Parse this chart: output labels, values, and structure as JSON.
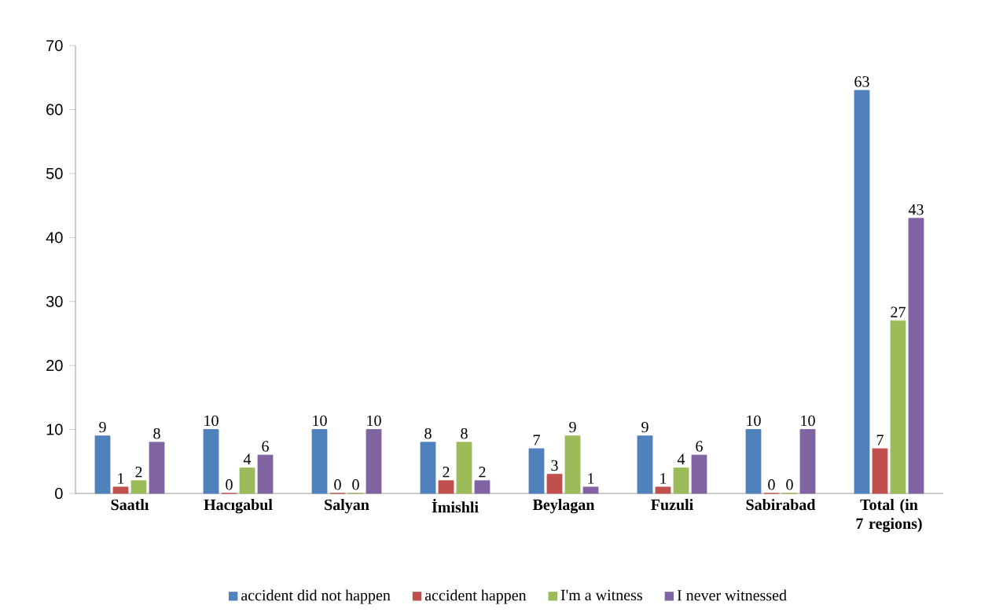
{
  "chart_data": {
    "type": "bar",
    "categories": [
      "Saatlı",
      "Hacıgabul",
      "Salyan",
      "İmishli",
      "Beylagan",
      "Fuzuli",
      "Sabirabad",
      "Total (in 7 regions)"
    ],
    "series": [
      {
        "name": "accident did not happen",
        "color": "#4f81bd",
        "values": [
          9,
          10,
          10,
          8,
          7,
          9,
          10,
          63
        ]
      },
      {
        "name": "accident  happen",
        "color": "#c0504d",
        "values": [
          1,
          0,
          0,
          2,
          3,
          1,
          0,
          7
        ]
      },
      {
        "name": "I'm a witness",
        "color": "#9bbb59",
        "values": [
          2,
          4,
          0,
          8,
          9,
          4,
          0,
          27
        ]
      },
      {
        "name": "I never  witnessed",
        "color": "#8064a2",
        "values": [
          8,
          6,
          10,
          2,
          1,
          6,
          10,
          43
        ]
      }
    ],
    "ylim": [
      0,
      70
    ],
    "yticks": [
      0,
      10,
      20,
      30,
      40,
      50,
      60,
      70
    ],
    "data_labels": true,
    "legend": "bottom"
  }
}
